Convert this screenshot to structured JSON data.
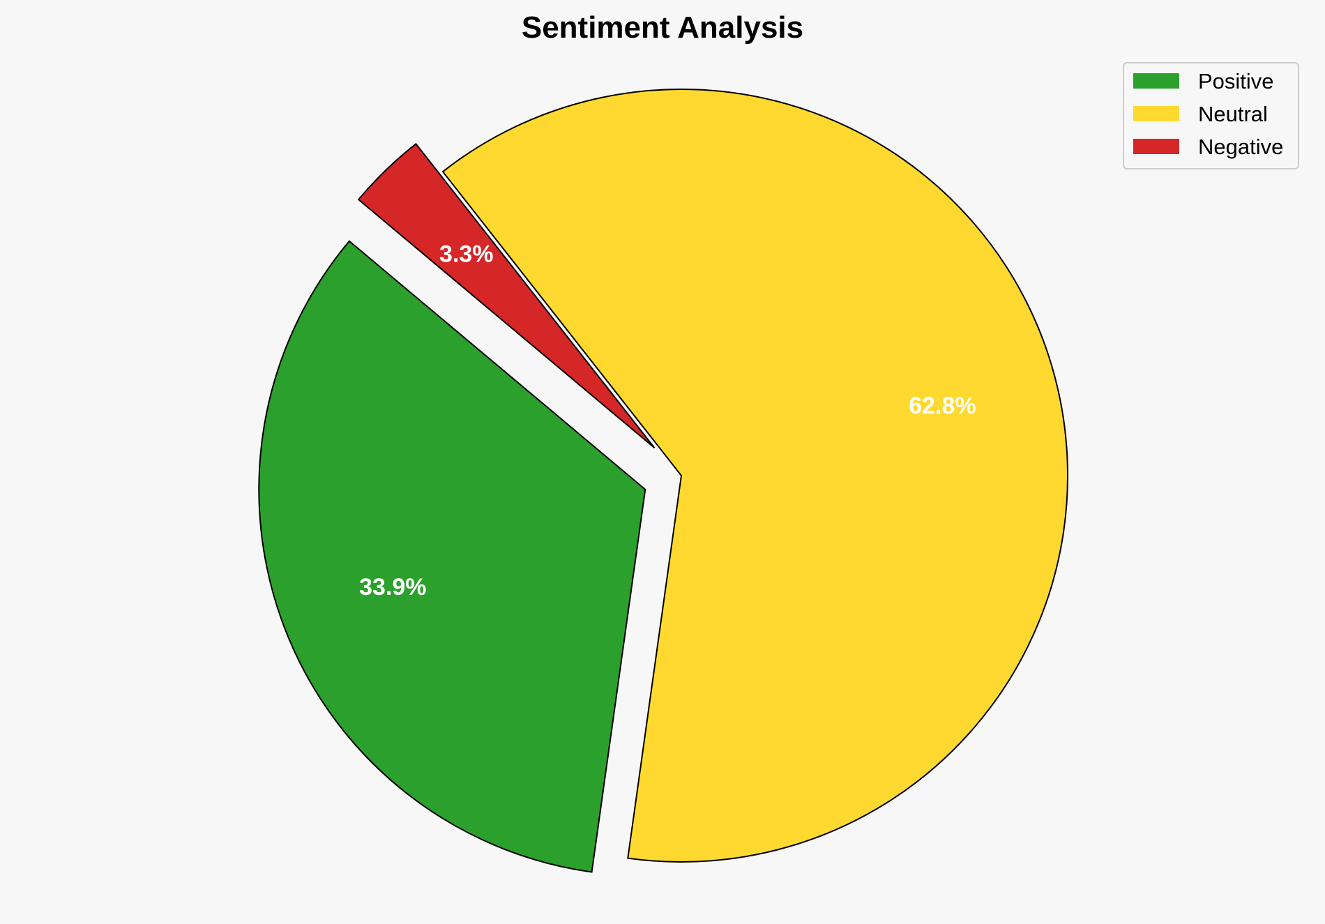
{
  "chart_data": {
    "type": "pie",
    "title": "Sentiment Analysis",
    "categories": [
      "Positive",
      "Neutral",
      "Negative"
    ],
    "values": [
      33.9,
      62.8,
      3.3
    ],
    "value_labels": [
      "33.9%",
      "62.8%",
      "3.3%"
    ],
    "colors": [
      "#2ca02c",
      "#ffd92f",
      "#d62728"
    ],
    "exploded": [
      true,
      false,
      true
    ],
    "start_angle_deg": 140,
    "direction": "counterclockwise",
    "legend_position": "top-right",
    "edge_color": "#000000",
    "background": "#f7f7f7"
  }
}
